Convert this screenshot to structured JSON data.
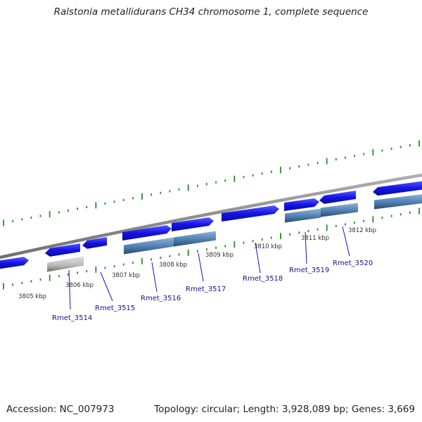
{
  "title": "Ralstonia metallidurans CH34 chromosome 1, complete sequence",
  "footer": {
    "accession": "Accession: NC_007973",
    "summary": "Topology: circular; Length: 3,928,089 bp; Genes: 3,669"
  },
  "colors": {
    "backbone": "#8a8a8a",
    "tick": "#2a8a2a",
    "gene": "#1414e6",
    "cds": "#4f7fb0",
    "pseudo": "#b8b8b8",
    "label_line": "#1414c8",
    "label_text": "#14148c"
  },
  "kbp_labels": [
    "3805 kbp",
    "3806 kbp",
    "3807 kbp",
    "3808 kbp",
    "3809 kbp",
    "3810 kbp",
    "3811 kbp",
    "3812 kbp"
  ],
  "genes": [
    {
      "label": "Rmet_3514"
    },
    {
      "label": "Rmet_3515"
    },
    {
      "label": "Rmet_3516"
    },
    {
      "label": "Rmet_3517"
    },
    {
      "label": "Rmet_3518"
    },
    {
      "label": "Rmet_3519"
    },
    {
      "label": "Rmet_3520"
    }
  ]
}
